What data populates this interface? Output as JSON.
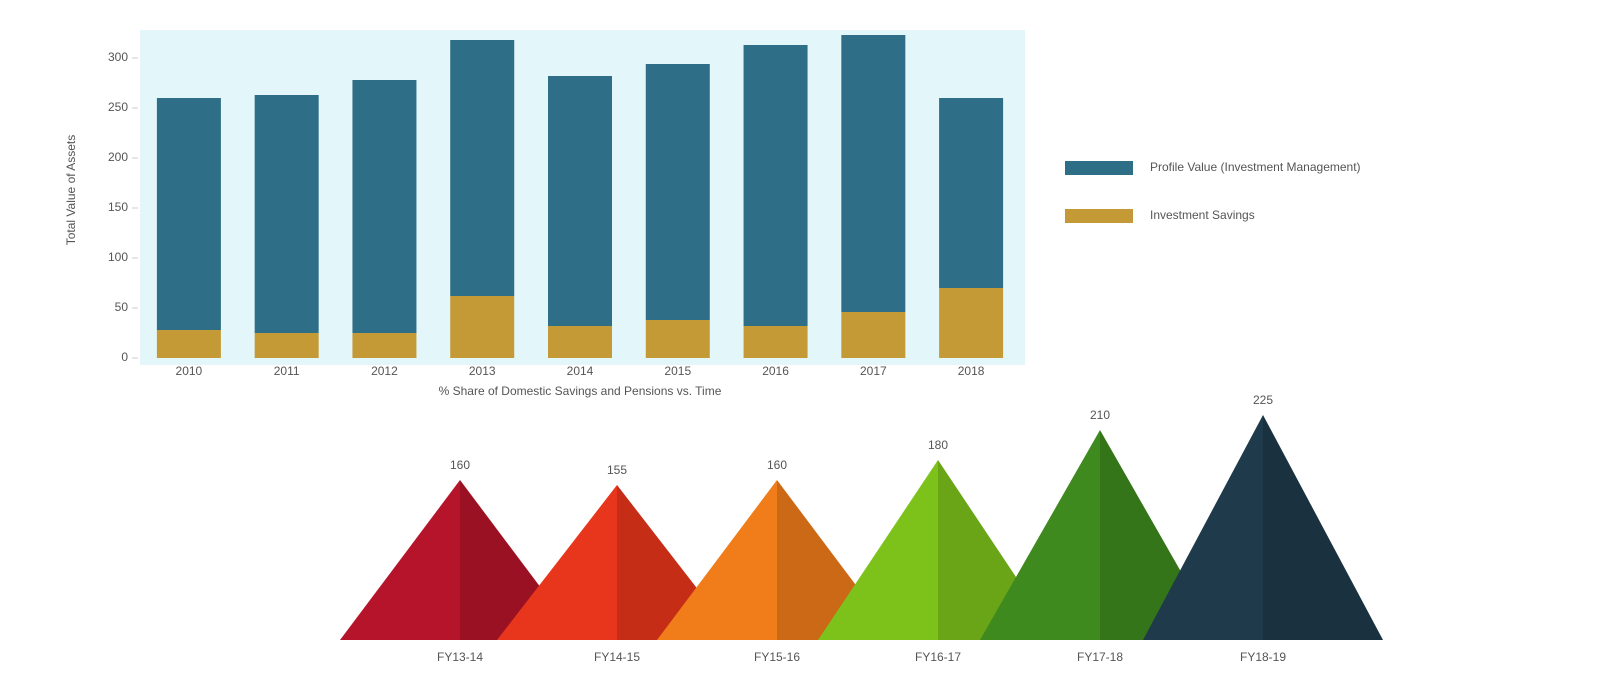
{
  "chart_data": [
    {
      "type": "stacked-bar",
      "title": "% Share of Domestic Savings and Pensions vs. Time",
      "y_label": "Total Value of Assets",
      "categories": [
        "2010",
        "2011",
        "2012",
        "2013",
        "2014",
        "2015",
        "2016",
        "2017",
        "2018"
      ],
      "series": [
        {
          "name": "Investment Savings",
          "color": "#c39a36",
          "values": [
            28,
            25,
            25,
            62,
            32,
            38,
            32,
            46,
            70
          ]
        },
        {
          "name": "Profile Value (Investment Management)",
          "color": "#2e6e86",
          "values": [
            232,
            238,
            253,
            256,
            250,
            256,
            281,
            277,
            190
          ]
        }
      ],
      "ylim": [
        0,
        320
      ],
      "yticks": [
        0,
        50,
        100,
        150,
        200,
        250,
        300
      ],
      "legend": "right"
    },
    {
      "type": "triangle",
      "categories": [
        "FY13-14",
        "FY14-15",
        "FY15-16",
        "FY16-17",
        "FY17-18",
        "FY18-19"
      ],
      "values": [
        160,
        155,
        160,
        180,
        210,
        225
      ],
      "colors": [
        "#b5142a",
        "#e8361c",
        "#f07c1a",
        "#7cc21a",
        "#3e8a1e",
        "#1f3a4a"
      ],
      "ylim": [
        0,
        230
      ]
    }
  ]
}
